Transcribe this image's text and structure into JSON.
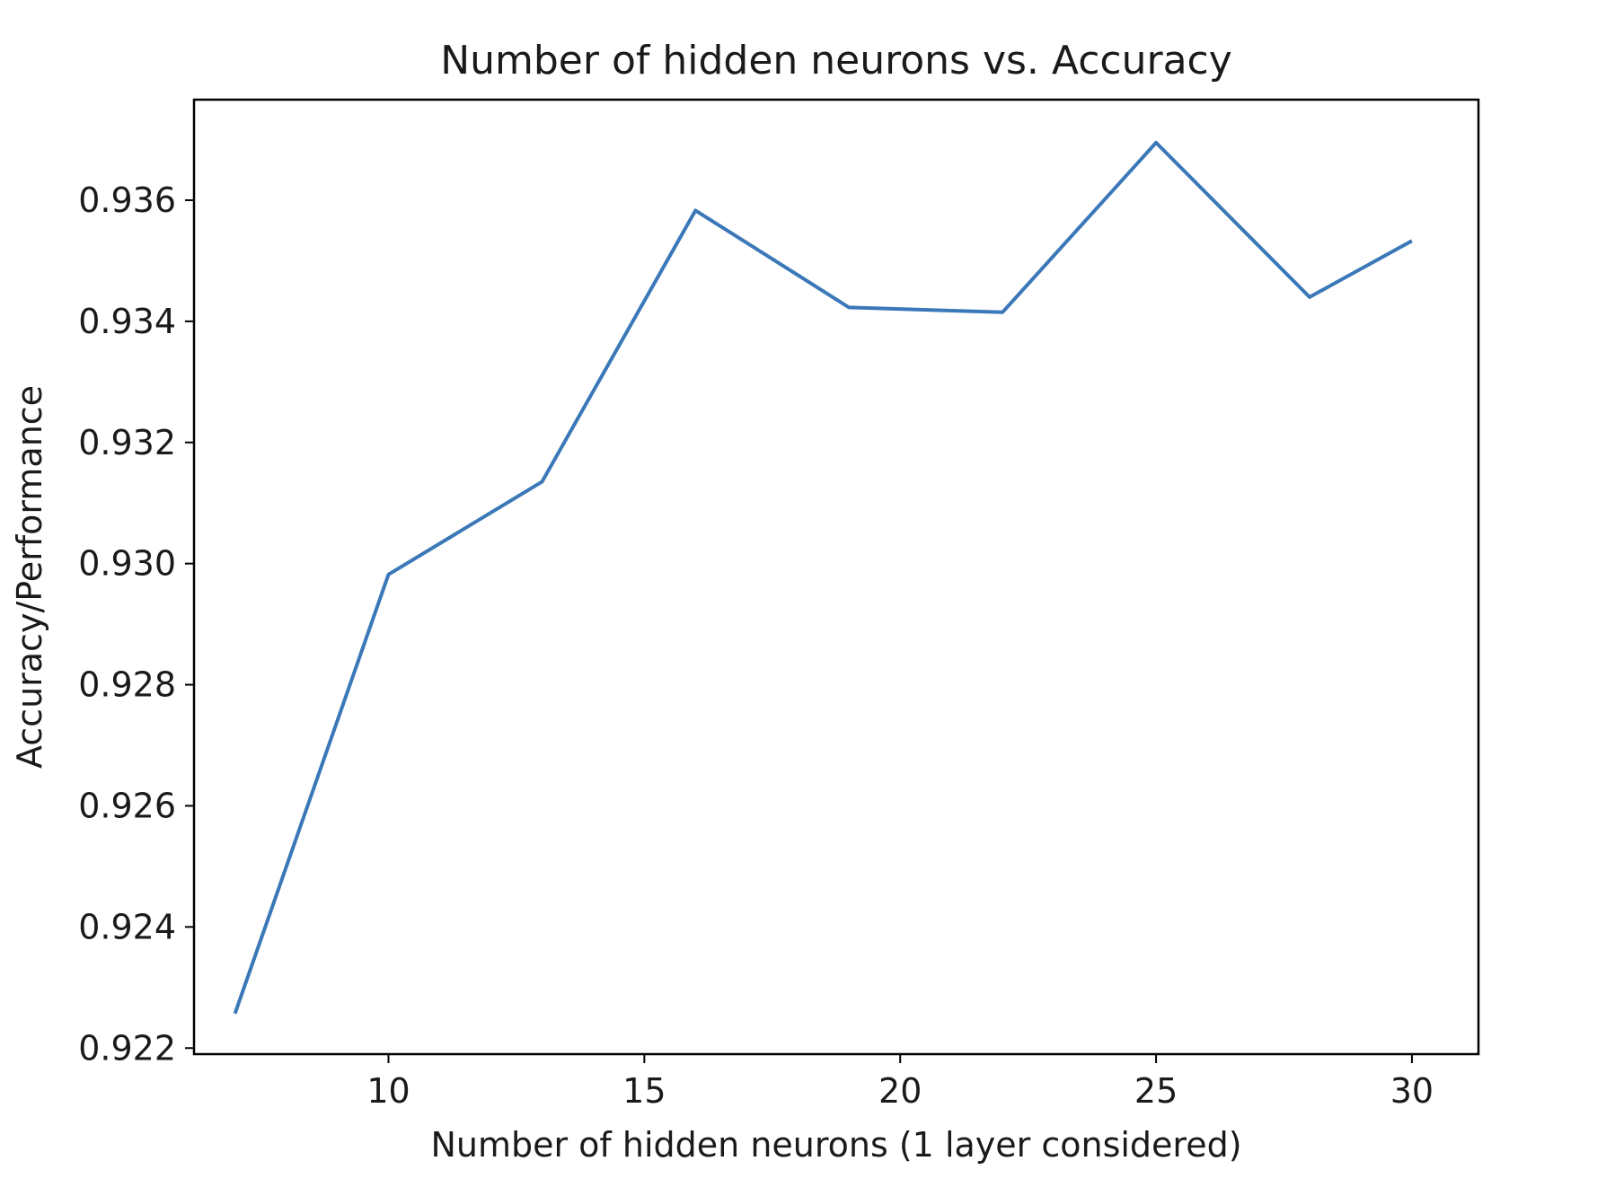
{
  "chart_data": {
    "type": "line",
    "title": "Number of hidden neurons vs. Accuracy",
    "xlabel": "Number of hidden neurons (1 layer considered)",
    "ylabel": "Accuracy/Performance",
    "xlim": [
      6.2,
      31.3
    ],
    "ylim": [
      0.9219,
      0.93766
    ],
    "xticks": [
      10,
      15,
      20,
      25,
      30
    ],
    "xtick_labels": [
      "10",
      "15",
      "20",
      "25",
      "30"
    ],
    "yticks": [
      0.922,
      0.924,
      0.926,
      0.928,
      0.93,
      0.932,
      0.934,
      0.936
    ],
    "ytick_labels": [
      "0.922",
      "0.924",
      "0.926",
      "0.928",
      "0.930",
      "0.932",
      "0.934",
      "0.936"
    ],
    "grid": false,
    "line_color": "#3a78b8",
    "series": [
      {
        "x": [
          7,
          10,
          13,
          16,
          19,
          22,
          25,
          28,
          30
        ],
        "values": [
          0.92257,
          0.92982,
          0.93135,
          0.93583,
          0.93423,
          0.93415,
          0.93695,
          0.9344,
          0.93533
        ]
      }
    ]
  }
}
